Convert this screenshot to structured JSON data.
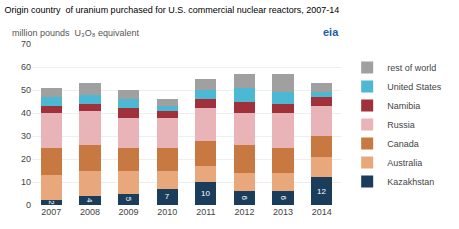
{
  "chart_data": {
    "type": "bar",
    "title": "Origin country  of uranium purchased for U.S. commercial nuclear reactors, 2007-14",
    "subtitle": "million pounds  U₃O₈ equivalent",
    "annotations": [
      "eia"
    ],
    "categories": [
      "2007",
      "2008",
      "2009",
      "2010",
      "2011",
      "2012",
      "2013",
      "2014"
    ],
    "series": [
      {
        "name": "Kazakhstan",
        "color": "#1a3d5c",
        "values": [
          2,
          4,
          5,
          7,
          10,
          6,
          6,
          12
        ],
        "data_labels": true
      },
      {
        "name": "Australia",
        "color": "#e8a87c",
        "values": [
          11,
          11,
          10,
          8,
          7,
          8,
          8,
          9
        ]
      },
      {
        "name": "Canada",
        "color": "#c87941",
        "values": [
          12,
          11,
          10,
          10,
          11,
          12,
          11,
          9
        ]
      },
      {
        "name": "Russia",
        "color": "#e8b4b8",
        "values": [
          15,
          15,
          13,
          13,
          14,
          14,
          15,
          13
        ]
      },
      {
        "name": "Namibia",
        "color": "#a0303a",
        "values": [
          3,
          3,
          4,
          3,
          4,
          5,
          4,
          4
        ]
      },
      {
        "name": "United States",
        "color": "#4db8d4",
        "values": [
          4,
          4,
          4,
          2,
          4,
          6,
          5,
          2
        ]
      },
      {
        "name": "rest of world",
        "color": "#a0a0a0",
        "values": [
          4,
          5,
          4,
          3,
          5,
          6,
          8,
          4
        ]
      }
    ],
    "stacked": true,
    "ylim": [
      0,
      70
    ],
    "yticks": [
      0,
      10,
      20,
      30,
      40,
      50,
      60,
      70
    ],
    "grid": true,
    "legend": "right"
  }
}
